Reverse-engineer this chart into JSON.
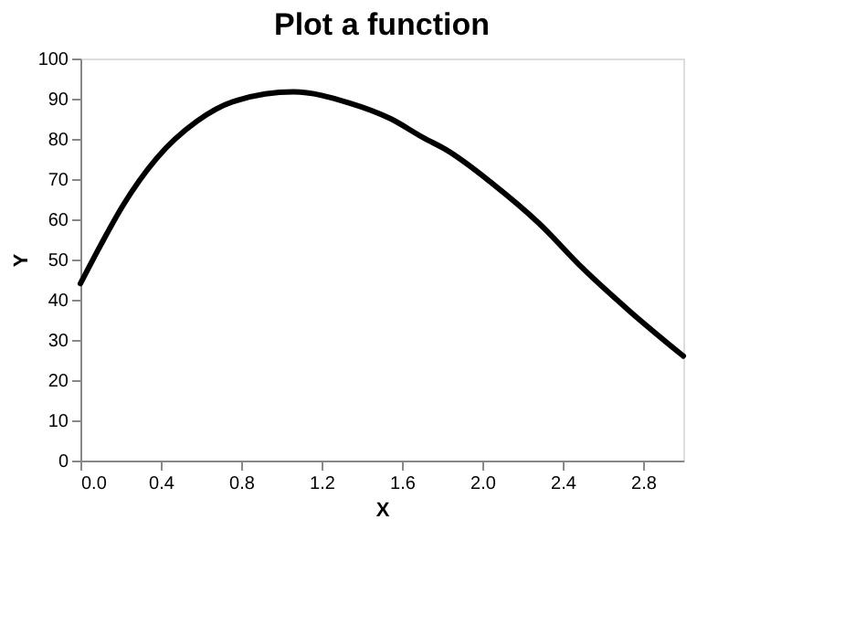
{
  "chart_data": {
    "type": "line",
    "title": "Plot a function",
    "xlabel": "X",
    "ylabel": "Y",
    "x": [
      0,
      0.1,
      0.21,
      0.38,
      0.58,
      0.78,
      1.06,
      1.34,
      1.54,
      1.71,
      1.82,
      2.05,
      2.28,
      2.5,
      2.73,
      3.0
    ],
    "series": [
      {
        "color": "#000000",
        "values": [
          44,
          53.5,
          63.3,
          75.2,
          84.4,
          89.6,
          91.7,
          88.9,
          85.1,
          80.2,
          77.3,
          68.9,
          59.1,
          47.8,
          37.3,
          26
        ]
      }
    ],
    "xlim": [
      0,
      3.0
    ],
    "xticks": [
      {
        "value": 0,
        "label": "0.0"
      },
      {
        "value": 0.4,
        "label": "0.4"
      },
      {
        "value": 0.8,
        "label": "0.8"
      },
      {
        "value": 1.2,
        "label": "1.2"
      },
      {
        "value": 1.6,
        "label": "1.6"
      },
      {
        "value": 2.0,
        "label": "2.0"
      },
      {
        "value": 2.4,
        "label": "2.4"
      },
      {
        "value": 2.8,
        "label": "2.8"
      }
    ],
    "ylim": [
      0,
      100
    ],
    "yticks": [
      0,
      10,
      20,
      30,
      40,
      50,
      60,
      70,
      80,
      90,
      100
    ],
    "grid": false,
    "marker": "none",
    "line_style": "solid"
  }
}
